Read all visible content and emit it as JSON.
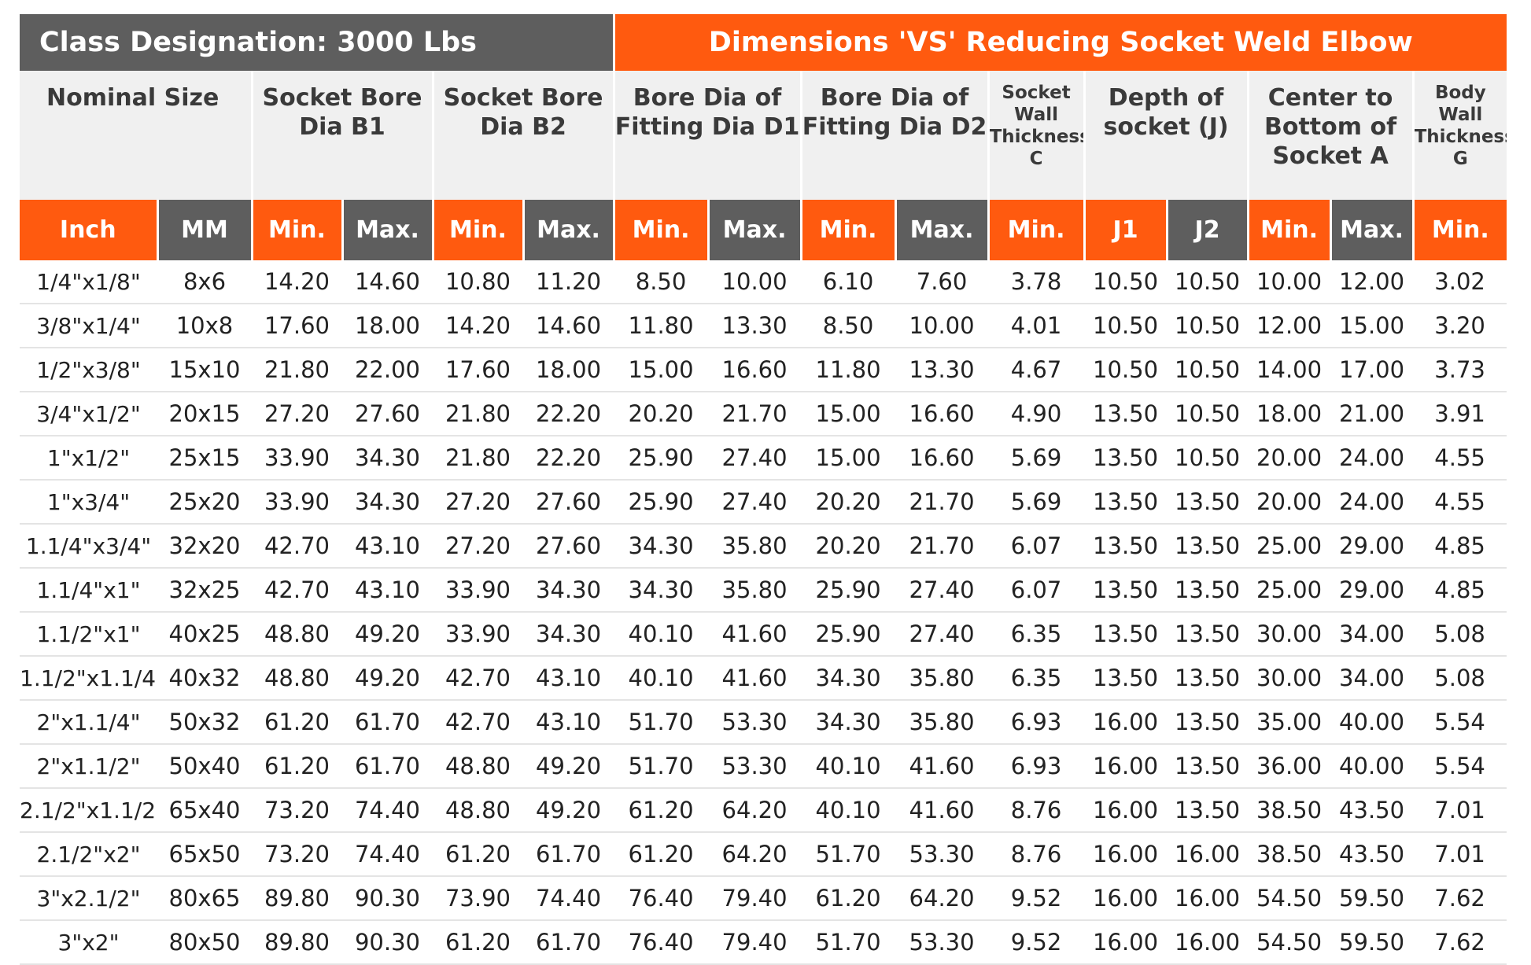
{
  "table": {
    "title_left": "Class Designation: 3000 Lbs",
    "title_right": "Dimensions 'VS' Reducing Socket Weld Elbow",
    "group_headers": [
      {
        "label": "Nominal Size",
        "span": 2,
        "small": false
      },
      {
        "label": "Socket Bore Dia B1",
        "span": 2,
        "small": false
      },
      {
        "label": "Socket Bore Dia B2",
        "span": 2,
        "small": false
      },
      {
        "label": "Bore Dia of Fitting Dia D1",
        "span": 2,
        "small": false
      },
      {
        "label": "Bore Dia of Fitting Dia D2",
        "span": 2,
        "small": false
      },
      {
        "label": "Socket Wall Thickness C",
        "span": 1,
        "small": true
      },
      {
        "label": "Depth of socket (J)",
        "span": 2,
        "small": false
      },
      {
        "label": "Center to Bottom of Socket A",
        "span": 2,
        "small": false
      },
      {
        "label": "Body Wall Thickness G",
        "span": 1,
        "small": true
      }
    ],
    "sub_headers": [
      "Inch",
      "MM",
      "Min.",
      "Max.",
      "Min.",
      "Max.",
      "Min.",
      "Max.",
      "Min.",
      "Max.",
      "Min.",
      "J1",
      "J2",
      "Min.",
      "Max.",
      "Min."
    ],
    "sub_header_colors": [
      "o",
      "g",
      "o",
      "g",
      "o",
      "g",
      "o",
      "g",
      "o",
      "g",
      "o",
      "o",
      "g",
      "o",
      "g",
      "o"
    ],
    "rows": [
      [
        "1/4\"x1/8\"",
        "8x6",
        "14.20",
        "14.60",
        "10.80",
        "11.20",
        "8.50",
        "10.00",
        "6.10",
        "7.60",
        "3.78",
        "10.50",
        "10.50",
        "10.00",
        "12.00",
        "3.02"
      ],
      [
        "3/8\"x1/4\"",
        "10x8",
        "17.60",
        "18.00",
        "14.20",
        "14.60",
        "11.80",
        "13.30",
        "8.50",
        "10.00",
        "4.01",
        "10.50",
        "10.50",
        "12.00",
        "15.00",
        "3.20"
      ],
      [
        "1/2\"x3/8\"",
        "15x10",
        "21.80",
        "22.00",
        "17.60",
        "18.00",
        "15.00",
        "16.60",
        "11.80",
        "13.30",
        "4.67",
        "10.50",
        "10.50",
        "14.00",
        "17.00",
        "3.73"
      ],
      [
        "3/4\"x1/2\"",
        "20x15",
        "27.20",
        "27.60",
        "21.80",
        "22.20",
        "20.20",
        "21.70",
        "15.00",
        "16.60",
        "4.90",
        "13.50",
        "10.50",
        "18.00",
        "21.00",
        "3.91"
      ],
      [
        "1\"x1/2\"",
        "25x15",
        "33.90",
        "34.30",
        "21.80",
        "22.20",
        "25.90",
        "27.40",
        "15.00",
        "16.60",
        "5.69",
        "13.50",
        "10.50",
        "20.00",
        "24.00",
        "4.55"
      ],
      [
        "1\"x3/4\"",
        "25x20",
        "33.90",
        "34.30",
        "27.20",
        "27.60",
        "25.90",
        "27.40",
        "20.20",
        "21.70",
        "5.69",
        "13.50",
        "13.50",
        "20.00",
        "24.00",
        "4.55"
      ],
      [
        "1.1/4\"x3/4\"",
        "32x20",
        "42.70",
        "43.10",
        "27.20",
        "27.60",
        "34.30",
        "35.80",
        "20.20",
        "21.70",
        "6.07",
        "13.50",
        "13.50",
        "25.00",
        "29.00",
        "4.85"
      ],
      [
        "1.1/4\"x1\"",
        "32x25",
        "42.70",
        "43.10",
        "33.90",
        "34.30",
        "34.30",
        "35.80",
        "25.90",
        "27.40",
        "6.07",
        "13.50",
        "13.50",
        "25.00",
        "29.00",
        "4.85"
      ],
      [
        "1.1/2\"x1\"",
        "40x25",
        "48.80",
        "49.20",
        "33.90",
        "34.30",
        "40.10",
        "41.60",
        "25.90",
        "27.40",
        "6.35",
        "13.50",
        "13.50",
        "30.00",
        "34.00",
        "5.08"
      ],
      [
        "1.1/2\"x1.1/4\"",
        "40x32",
        "48.80",
        "49.20",
        "42.70",
        "43.10",
        "40.10",
        "41.60",
        "34.30",
        "35.80",
        "6.35",
        "13.50",
        "13.50",
        "30.00",
        "34.00",
        "5.08"
      ],
      [
        "2\"x1.1/4\"",
        "50x32",
        "61.20",
        "61.70",
        "42.70",
        "43.10",
        "51.70",
        "53.30",
        "34.30",
        "35.80",
        "6.93",
        "16.00",
        "13.50",
        "35.00",
        "40.00",
        "5.54"
      ],
      [
        "2\"x1.1/2\"",
        "50x40",
        "61.20",
        "61.70",
        "48.80",
        "49.20",
        "51.70",
        "53.30",
        "40.10",
        "41.60",
        "6.93",
        "16.00",
        "13.50",
        "36.00",
        "40.00",
        "5.54"
      ],
      [
        "2.1/2\"x1.1/2\"",
        "65x40",
        "73.20",
        "74.40",
        "48.80",
        "49.20",
        "61.20",
        "64.20",
        "40.10",
        "41.60",
        "8.76",
        "16.00",
        "13.50",
        "38.50",
        "43.50",
        "7.01"
      ],
      [
        "2.1/2\"x2\"",
        "65x50",
        "73.20",
        "74.40",
        "61.20",
        "61.70",
        "61.20",
        "64.20",
        "51.70",
        "53.30",
        "8.76",
        "16.00",
        "16.00",
        "38.50",
        "43.50",
        "7.01"
      ],
      [
        "3\"x2.1/2\"",
        "80x65",
        "89.80",
        "90.30",
        "73.90",
        "74.40",
        "76.40",
        "79.40",
        "61.20",
        "64.20",
        "9.52",
        "16.00",
        "16.00",
        "54.50",
        "59.50",
        "7.62"
      ],
      [
        "3\"x2\"",
        "80x50",
        "89.80",
        "90.30",
        "61.20",
        "61.70",
        "76.40",
        "79.40",
        "51.70",
        "53.30",
        "9.52",
        "16.00",
        "16.00",
        "54.50",
        "59.50",
        "7.62"
      ]
    ]
  }
}
